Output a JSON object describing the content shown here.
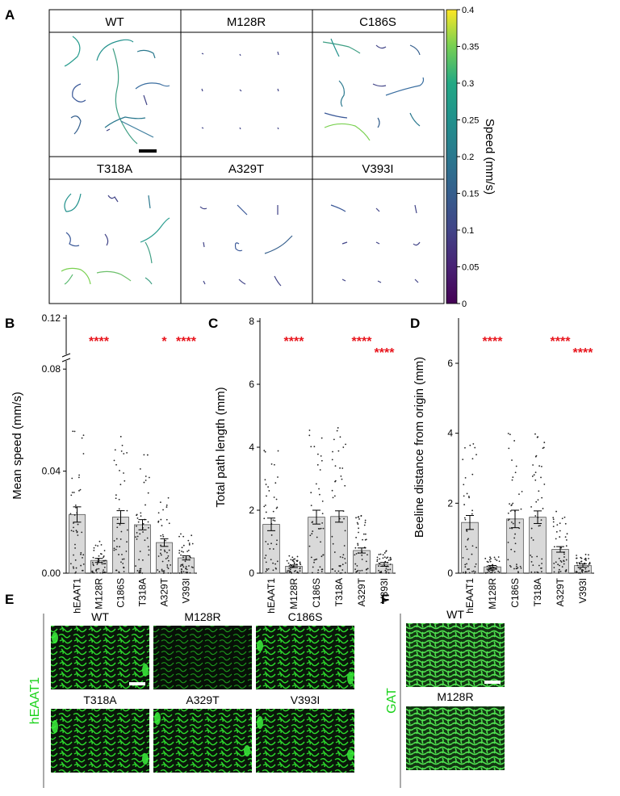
{
  "panels": {
    "A": "A",
    "B": "B",
    "C": "C",
    "D": "D",
    "E": "E",
    "F": "F"
  },
  "panel_a": {
    "grid": [
      [
        "WT",
        "M128R",
        "C186S"
      ],
      [
        "T318A",
        "A329T",
        "V393I"
      ]
    ],
    "colorbar": {
      "label": "Speed (mm/s)",
      "ticks": [
        "0.4",
        "0.35",
        "0.3",
        "0.25",
        "0.2",
        "0.15",
        "0.1",
        "0.05",
        "0"
      ],
      "min": 0,
      "max": 0.4
    }
  },
  "chart_data": [
    {
      "type": "bar",
      "categories": [
        "hEAAT1",
        "M128R",
        "C186S",
        "T318A",
        "A329T",
        "V393I"
      ],
      "values": [
        0.023,
        0.005,
        0.022,
        0.019,
        0.012,
        0.006
      ],
      "errors": [
        0.003,
        0.0008,
        0.0025,
        0.002,
        0.0015,
        0.0008
      ],
      "ylabel": "Mean speed (mm/s)",
      "yticks": [
        "0.00",
        "0.04",
        "0.08",
        "0.12"
      ],
      "ylim": [
        0,
        0.12
      ],
      "axis_break": true,
      "significance": [
        "",
        "****",
        "",
        "",
        "*",
        "****"
      ]
    },
    {
      "type": "bar",
      "categories": [
        "hEAAT1",
        "M128R",
        "C186S",
        "T318A",
        "A329T",
        "V393I"
      ],
      "values": [
        1.55,
        0.22,
        1.78,
        1.8,
        0.72,
        0.28
      ],
      "errors": [
        0.2,
        0.04,
        0.22,
        0.18,
        0.08,
        0.06
      ],
      "ylabel": "Total path length (mm)",
      "yticks": [
        "0",
        "2",
        "4",
        "6",
        "8"
      ],
      "ylim": [
        0,
        8
      ],
      "significance": [
        "",
        "****",
        "",
        "",
        "****",
        "****"
      ]
    },
    {
      "type": "bar",
      "categories": [
        "hEAAT1",
        "M128R",
        "C186S",
        "T318A",
        "A329T",
        "V393I"
      ],
      "values": [
        1.45,
        0.18,
        1.55,
        1.6,
        0.68,
        0.22
      ],
      "errors": [
        0.2,
        0.04,
        0.25,
        0.18,
        0.08,
        0.05
      ],
      "ylabel": "Beeline distance from origin (mm)",
      "yticks": [
        "0",
        "2",
        "4",
        "6"
      ],
      "ylim": [
        0,
        7.2
      ],
      "significance": [
        "",
        "****",
        "",
        "",
        "****",
        "****"
      ]
    }
  ],
  "panel_e": {
    "ylabel": "hEAAT1",
    "labels": [
      "WT",
      "M128R",
      "C186S",
      "T318A",
      "A329T",
      "V393I"
    ]
  },
  "panel_f": {
    "ylabel": "GAT",
    "labels": [
      "WT",
      "M128R"
    ]
  },
  "colors": {
    "sig": "#e8141c",
    "bar": "#d9d9d9",
    "image_green": "#19d219"
  }
}
